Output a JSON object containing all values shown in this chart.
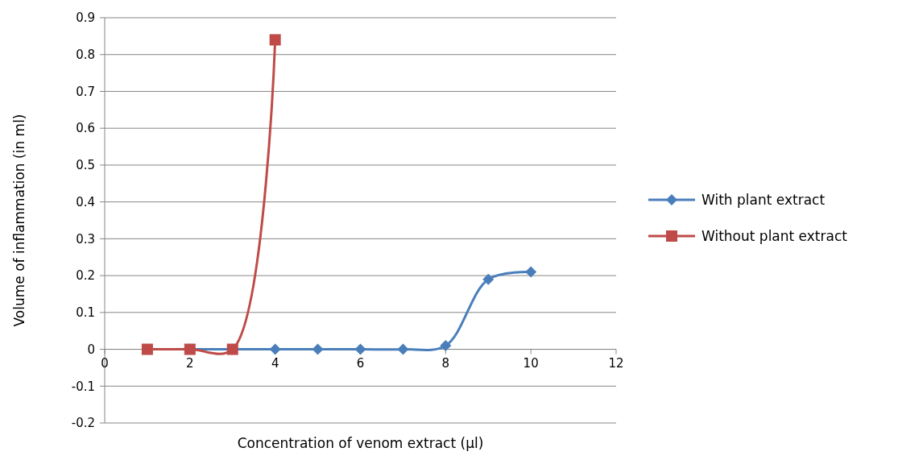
{
  "chart_data": {
    "type": "line",
    "xlabel": "Concentration of venom extract (µl)",
    "ylabel": "Volume of inflammation  (in ml)",
    "xlim": [
      0,
      12
    ],
    "xticks": [
      0,
      2,
      4,
      6,
      8,
      10,
      12
    ],
    "ylim": [
      -0.2,
      0.9
    ],
    "yticks": [
      -0.2,
      -0.1,
      0,
      0.1,
      0.2,
      0.3,
      0.4,
      0.5,
      0.6,
      0.7,
      0.8,
      0.9
    ],
    "grid": "y",
    "legend": "right",
    "line_style": "solid",
    "series": [
      {
        "name": "With plant extract",
        "color": "#4a7ebb",
        "marker": "diamond",
        "x": [
          2,
          3,
          4,
          5,
          6,
          7,
          8,
          9,
          10
        ],
        "values": [
          0,
          0,
          0,
          0,
          0,
          0,
          0.01,
          0.19,
          0.21
        ]
      },
      {
        "name": "Without plant extract",
        "color": "#be4b48",
        "marker": "square",
        "x": [
          1,
          2,
          3,
          4
        ],
        "values": [
          0,
          0,
          0,
          0.84
        ]
      }
    ]
  }
}
